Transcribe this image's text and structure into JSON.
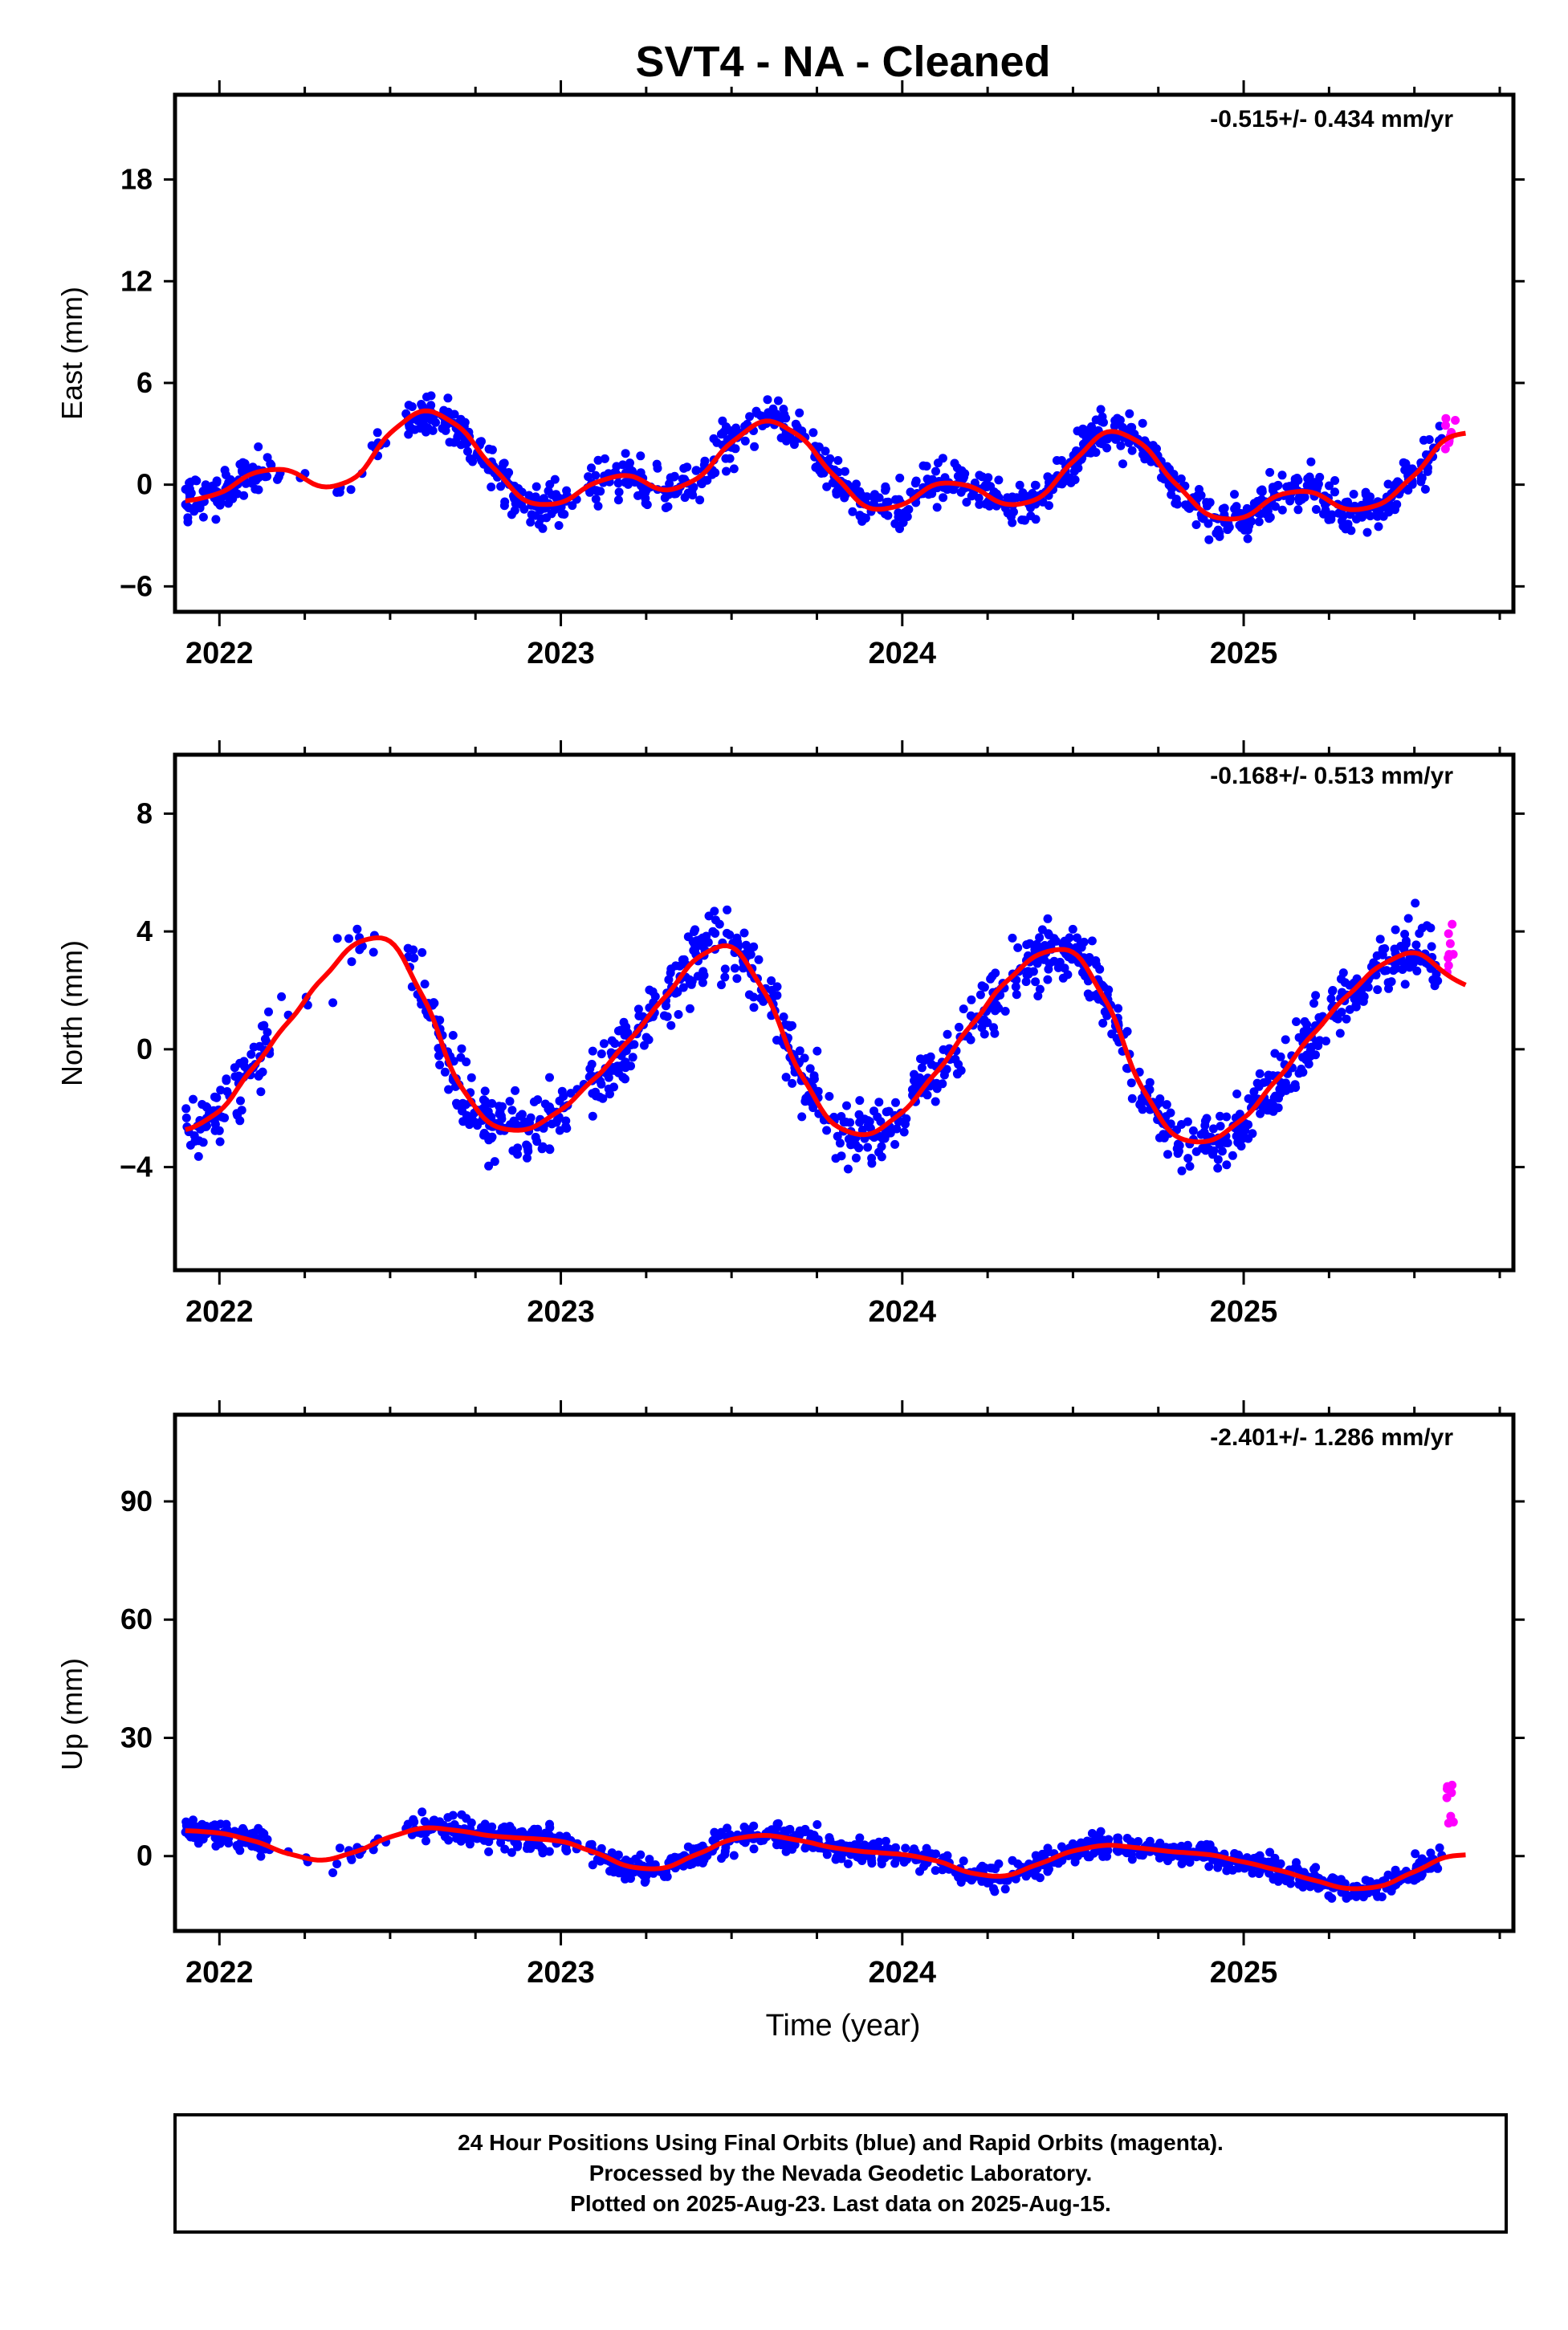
{
  "title": "SVT4  - NA - Cleaned",
  "xlabel": "Time (year)",
  "colors": {
    "final": "#0000ff",
    "rapid": "#ff00ff",
    "fit": "#ff0000"
  },
  "footer": {
    "line1": "24 Hour Positions Using Final Orbits (blue) and Rapid Orbits (magenta).",
    "line2": "Processed by the Nevada Geodetic Laboratory.",
    "line3": "Plotted on 2025-Aug-23. Last data on 2025-Aug-15."
  },
  "chart_data": [
    {
      "type": "scatter",
      "component": "East",
      "ylabel": "East (mm)",
      "rate_label": "-0.515+/- 0.434 mm/yr",
      "xlim": [
        2021.87,
        2025.79
      ],
      "ylim": [
        -7.5,
        23
      ],
      "xticks": [
        2022,
        2023,
        2024,
        2025
      ],
      "yticks": [
        -6,
        0,
        6,
        12,
        18
      ],
      "fit": {
        "x": [
          2021.9,
          2022.0,
          2022.1,
          2022.2,
          2022.3,
          2022.4,
          2022.5,
          2022.6,
          2022.7,
          2022.8,
          2022.9,
          2023.0,
          2023.1,
          2023.2,
          2023.3,
          2023.4,
          2023.5,
          2023.6,
          2023.7,
          2023.8,
          2023.9,
          2024.0,
          2024.1,
          2024.2,
          2024.3,
          2024.4,
          2024.5,
          2024.6,
          2024.7,
          2024.8,
          2024.9,
          2025.0,
          2025.1,
          2025.2,
          2025.3,
          2025.4,
          2025.5,
          2025.6,
          2025.65
        ],
        "y": [
          -1.0,
          -0.6,
          0.8,
          1.0,
          -0.3,
          0.2,
          3.2,
          4.6,
          3.6,
          1.0,
          -1.2,
          -1.2,
          0.2,
          0.7,
          -0.5,
          0.2,
          2.6,
          4.0,
          3.0,
          0.5,
          -1.6,
          -1.3,
          0.2,
          0.0,
          -1.3,
          -1.0,
          1.4,
          3.4,
          2.6,
          0.0,
          -2.0,
          -2.1,
          -0.5,
          -0.3,
          -1.6,
          -1.3,
          0.5,
          2.8,
          3.2
        ]
      }
    },
    {
      "type": "scatter",
      "component": "North",
      "ylabel": "North (mm)",
      "rate_label": "-0.168+/- 0.513 mm/yr",
      "xlim": [
        2021.87,
        2025.79
      ],
      "ylim": [
        -7.5,
        10
      ],
      "xticks": [
        2022,
        2023,
        2024,
        2025
      ],
      "yticks": [
        -4,
        0,
        4,
        8
      ],
      "fit": {
        "x": [
          2021.9,
          2022.0,
          2022.1,
          2022.2,
          2022.3,
          2022.4,
          2022.5,
          2022.6,
          2022.7,
          2022.8,
          2022.9,
          2023.0,
          2023.1,
          2023.2,
          2023.3,
          2023.4,
          2023.5,
          2023.6,
          2023.7,
          2023.8,
          2023.9,
          2024.0,
          2024.1,
          2024.2,
          2024.3,
          2024.4,
          2024.5,
          2024.6,
          2024.7,
          2024.8,
          2024.9,
          2025.0,
          2025.1,
          2025.2,
          2025.3,
          2025.4,
          2025.5,
          2025.6,
          2025.65
        ],
        "y": [
          -2.8,
          -2.2,
          -0.6,
          0.9,
          2.4,
          3.7,
          3.9,
          1.8,
          -1.3,
          -2.7,
          -2.8,
          -2.1,
          -1.0,
          0.3,
          1.7,
          3.2,
          3.7,
          2.0,
          -0.9,
          -2.7,
          -3.0,
          -2.2,
          -0.8,
          0.8,
          2.3,
          3.3,
          3.5,
          1.7,
          -1.4,
          -3.1,
          -3.2,
          -2.4,
          -1.0,
          0.5,
          1.8,
          2.9,
          3.4,
          2.8,
          1.8
        ]
      }
    },
    {
      "type": "scatter",
      "component": "Up",
      "ylabel": "Up (mm)",
      "rate_label": "-2.401+/- 1.286 mm/yr",
      "xlim": [
        2021.87,
        2025.79
      ],
      "ylim": [
        -19,
        112
      ],
      "xticks": [
        2022,
        2023,
        2024,
        2025
      ],
      "yticks": [
        0,
        30,
        60,
        90
      ],
      "fit": {
        "x": [
          2021.9,
          2022.0,
          2022.1,
          2022.2,
          2022.3,
          2022.4,
          2022.5,
          2022.6,
          2022.7,
          2022.8,
          2022.9,
          2023.0,
          2023.1,
          2023.2,
          2023.3,
          2023.4,
          2023.5,
          2023.6,
          2023.7,
          2023.8,
          2023.9,
          2024.0,
          2024.1,
          2024.2,
          2024.3,
          2024.4,
          2024.5,
          2024.6,
          2024.7,
          2024.8,
          2024.9,
          2025.0,
          2025.1,
          2025.2,
          2025.3,
          2025.4,
          2025.5,
          2025.6,
          2025.65
        ],
        "y": [
          6.5,
          6.0,
          4.0,
          0.5,
          -1.5,
          1.0,
          5.0,
          7.5,
          6.5,
          5.0,
          4.5,
          4.0,
          1.0,
          -3.0,
          -3.5,
          0.5,
          4.5,
          5.5,
          4.0,
          2.0,
          1.0,
          0.5,
          -1.0,
          -4.5,
          -5.5,
          -2.0,
          1.5,
          3.0,
          2.0,
          1.0,
          0.5,
          -1.5,
          -3.5,
          -6.0,
          -8.5,
          -8.0,
          -4.0,
          0.0,
          0.5
        ]
      }
    }
  ]
}
